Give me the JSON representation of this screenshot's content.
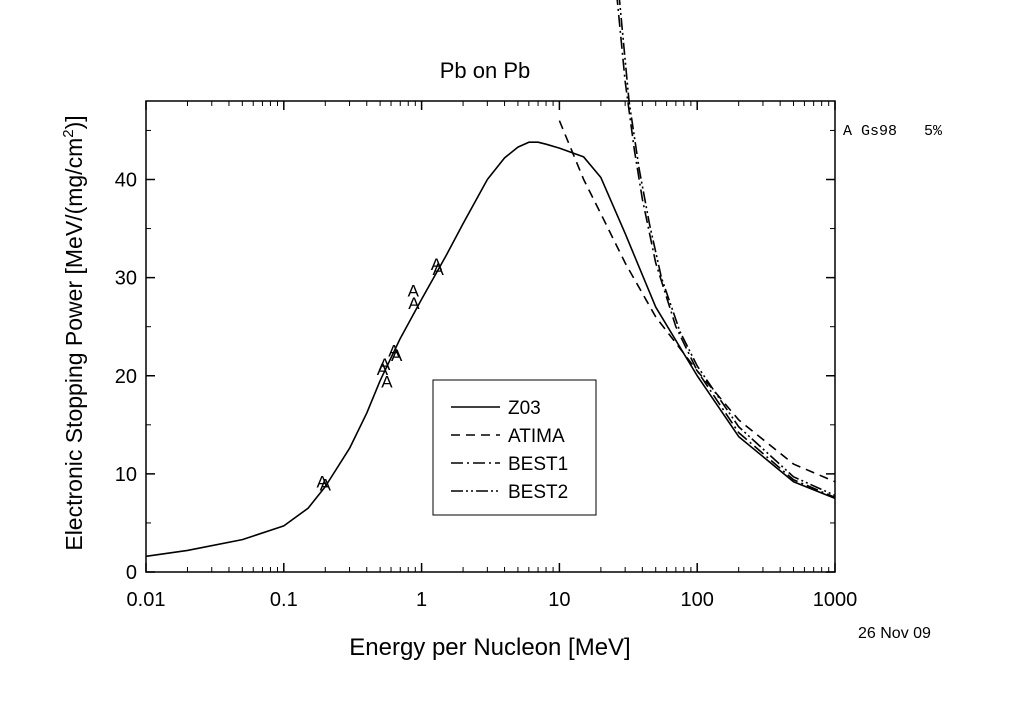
{
  "chart_data": {
    "type": "line",
    "title": "Pb on Pb",
    "xlabel": "Energy per Nucleon [MeV]",
    "ylabel": "Electronic Stopping Power [MeV/(mg/cm",
    "ylabel_sup": "2",
    "ylabel_end": ")]",
    "xscale": "log",
    "xlim": [
      0.01,
      1000
    ],
    "ylim": [
      0,
      48
    ],
    "x_ticks": [
      "0.01",
      "0.1",
      "1",
      "10",
      "100",
      "1000"
    ],
    "y_ticks": [
      "0",
      "10",
      "20",
      "30",
      "40"
    ],
    "legend_position": "center",
    "annotation": "A Gs98   5%",
    "date": "26 Nov 09",
    "series": [
      {
        "name": "Z03",
        "dash": "solid",
        "points": [
          [
            0.01,
            1.6
          ],
          [
            0.02,
            2.2
          ],
          [
            0.05,
            3.3
          ],
          [
            0.1,
            4.7
          ],
          [
            0.15,
            6.5
          ],
          [
            0.2,
            8.7
          ],
          [
            0.3,
            12.6
          ],
          [
            0.4,
            16.2
          ],
          [
            0.5,
            19.5
          ],
          [
            0.7,
            23.8
          ],
          [
            1.0,
            27.8
          ],
          [
            1.5,
            32.2
          ],
          [
            2.0,
            35.5
          ],
          [
            3.0,
            40.0
          ],
          [
            4.0,
            42.2
          ],
          [
            5.0,
            43.3
          ],
          [
            6.0,
            43.8
          ],
          [
            7.0,
            43.8
          ],
          [
            8.0,
            43.6
          ],
          [
            10.0,
            43.2
          ],
          [
            15.0,
            42.3
          ],
          [
            20.0,
            40.2
          ],
          [
            30.0,
            34.5
          ],
          [
            50.0,
            27.0
          ],
          [
            100.0,
            20.0
          ],
          [
            200.0,
            13.8
          ],
          [
            500.0,
            9.2
          ],
          [
            1000.0,
            7.5
          ]
        ]
      },
      {
        "name": "ATIMA",
        "dash": "dash",
        "points": [
          [
            10.0,
            46.0
          ],
          [
            15.0,
            40.0
          ],
          [
            20.0,
            36.5
          ],
          [
            30.0,
            31.5
          ],
          [
            50.0,
            26.0
          ],
          [
            100.0,
            20.5
          ],
          [
            200.0,
            15.5
          ],
          [
            500.0,
            11.0
          ],
          [
            1000.0,
            9.2
          ]
        ]
      },
      {
        "name": "BEST1",
        "dash": "dashdot",
        "points": [
          [
            26.0,
            59.0
          ],
          [
            30.0,
            50.0
          ],
          [
            35.0,
            43.0
          ],
          [
            40.0,
            38.0
          ],
          [
            50.0,
            31.5
          ],
          [
            70.0,
            25.0
          ],
          [
            100.0,
            20.5
          ],
          [
            200.0,
            14.2
          ],
          [
            500.0,
            9.4
          ],
          [
            1000.0,
            7.6
          ]
        ]
      },
      {
        "name": "BEST2",
        "dash": "dashdotdot",
        "points": [
          [
            27.0,
            59.0
          ],
          [
            32.0,
            48.0
          ],
          [
            38.0,
            41.0
          ],
          [
            45.0,
            35.5
          ],
          [
            55.0,
            30.0
          ],
          [
            75.0,
            24.5
          ],
          [
            100.0,
            21.0
          ],
          [
            200.0,
            14.8
          ],
          [
            500.0,
            9.7
          ],
          [
            1000.0,
            7.8
          ]
        ]
      }
    ],
    "measurements": {
      "marker": "A",
      "points": [
        [
          0.19,
          9.3
        ],
        [
          0.2,
          9.0
        ],
        [
          0.52,
          20.8
        ],
        [
          0.54,
          21.3
        ],
        [
          0.56,
          19.5
        ],
        [
          0.63,
          22.7
        ],
        [
          0.66,
          22.2
        ],
        [
          0.87,
          28.8
        ],
        [
          0.88,
          27.5
        ],
        [
          1.28,
          31.5
        ],
        [
          1.32,
          31.0
        ]
      ]
    }
  }
}
